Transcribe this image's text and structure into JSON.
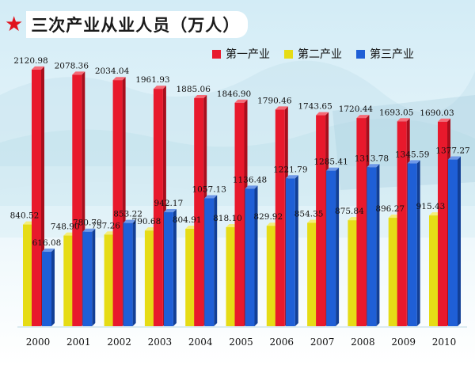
{
  "title": "三次产业从业人员（万人）",
  "colors": {
    "primary": "#e8192c",
    "secondary": "#e6dc16",
    "tertiary": "#1f5fd6",
    "star": "#e0141e"
  },
  "chart_data": {
    "type": "bar",
    "title": "三次产业从业人员（万人）",
    "categories": [
      "2000",
      "2001",
      "2002",
      "2003",
      "2004",
      "2005",
      "2006",
      "2007",
      "2008",
      "2009",
      "2010"
    ],
    "series": [
      {
        "name": "第一产业",
        "values": [
          2120.98,
          2078.36,
          2034.04,
          1961.93,
          1885.06,
          1846.9,
          1790.46,
          1743.65,
          1720.44,
          1693.05,
          1690.03
        ]
      },
      {
        "name": "第二产业",
        "values": [
          840.52,
          748.9,
          757.26,
          790.68,
          804.91,
          818.1,
          829.92,
          854.35,
          875.84,
          896.27,
          915.43
        ]
      },
      {
        "name": "第三产业",
        "values": [
          616.08,
          780.7,
          853.22,
          942.17,
          1057.13,
          1136.48,
          1221.79,
          1285.41,
          1313.78,
          1345.59,
          1377.27
        ]
      }
    ],
    "value_labels": [
      [
        "2120.98",
        "2078.36",
        "2034.04",
        "1961.93",
        "1885.06",
        "1846.90",
        "1790.46",
        "1743.65",
        "1720.44",
        "1693.05",
        "1690.03"
      ],
      [
        "840.52",
        "748.90",
        "757.26",
        "790.68",
        "804.91",
        "818.10",
        "829.92",
        "854.35",
        "875.84",
        "896.27",
        "915.43"
      ],
      [
        "616.08",
        "780.70",
        "853.22",
        "942.17",
        "1057.13",
        "1136.48",
        "1221.79",
        "1285.41",
        "1313.78",
        "1345.59",
        "1377.27"
      ]
    ],
    "legend_position": "top-right",
    "grid": false
  }
}
